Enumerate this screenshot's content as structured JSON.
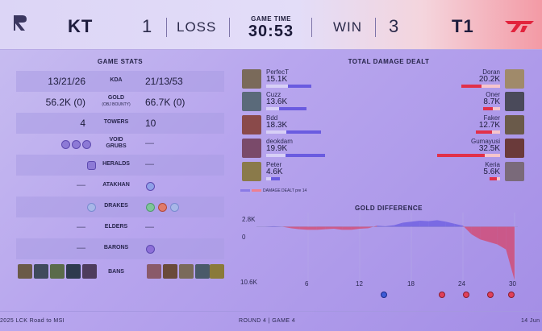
{
  "header": {
    "team_left": "KT",
    "team_right": "T1",
    "score_left": "1",
    "score_right": "3",
    "result_left": "LOSS",
    "result_right": "WIN",
    "game_time_label": "GAME TIME",
    "game_time": "30:53"
  },
  "game_stats": {
    "title": "GAME STATS",
    "rows": [
      {
        "label": "KDA",
        "left": "13/21/26",
        "right": "21/13/53"
      },
      {
        "label": "GOLD",
        "sublabel": "(OBJ BOUNTY)",
        "left": "56.2K (0)",
        "right": "66.7K (0)"
      },
      {
        "label": "TOWERS",
        "left": "4",
        "right": "10"
      },
      {
        "label": "VOID",
        "label2": "GRUBS",
        "left": "",
        "right": "—"
      },
      {
        "label": "HERALDS",
        "left": "",
        "right": "—"
      },
      {
        "label": "ATAKHAN",
        "left": "—",
        "right": ""
      },
      {
        "label": "DRAKES",
        "left": "",
        "right": ""
      },
      {
        "label": "ELDERS",
        "left": "—",
        "right": "—"
      },
      {
        "label": "BARONS",
        "left": "—",
        "right": ""
      },
      {
        "label": "BANS",
        "left": "",
        "right": ""
      }
    ]
  },
  "damage": {
    "title": "TOTAL DAMAGE DEALT",
    "legend": "DAMAGE DEALT pre 14",
    "max": 32.5,
    "kt": [
      {
        "name": "PerfecT",
        "value": "15.1K",
        "num": 15.1,
        "pre14": 7.2
      },
      {
        "name": "Cuzz",
        "value": "13.6K",
        "num": 13.6,
        "pre14": 4.3
      },
      {
        "name": "Bdd",
        "value": "18.3K",
        "num": 18.3,
        "pre14": 6.9
      },
      {
        "name": "deokdam",
        "value": "19.9K",
        "num": 19.9,
        "pre14": 6.5
      },
      {
        "name": "Peter",
        "value": "4.6K",
        "num": 4.6,
        "pre14": 1.6
      }
    ],
    "t1": [
      {
        "name": "Doran",
        "value": "20.2K",
        "num": 20.2,
        "pre14": 9.5
      },
      {
        "name": "Oner",
        "value": "8.7K",
        "num": 8.7,
        "pre14": 3.9
      },
      {
        "name": "Faker",
        "value": "12.7K",
        "num": 12.7,
        "pre14": 4.2
      },
      {
        "name": "Gumayusi",
        "value": "32.5K",
        "num": 32.5,
        "pre14": 8.0
      },
      {
        "name": "Keria",
        "value": "5.6K",
        "num": 5.6,
        "pre14": 1.5
      }
    ]
  },
  "gold_diff": {
    "title": "GOLD DIFFERENCE",
    "y_top": "2.8K",
    "y_zero": "0",
    "y_bottom": "10.6K",
    "x_ticks": [
      "6",
      "12",
      "18",
      "24",
      "30"
    ]
  },
  "chart_data": {
    "type": "area",
    "title": "GOLD DIFFERENCE",
    "x": [
      0,
      1,
      2,
      3,
      4,
      5,
      6,
      7,
      8,
      9,
      10,
      11,
      12,
      13,
      14,
      15,
      16,
      17,
      18,
      19,
      20,
      21,
      22,
      23,
      24,
      25,
      26,
      27,
      28,
      29,
      30
    ],
    "values": [
      0,
      0,
      0.1,
      0,
      -0.3,
      -0.5,
      -0.6,
      -0.6,
      -0.5,
      -0.4,
      -0.6,
      -0.6,
      -0.4,
      -0.3,
      0.2,
      0.1,
      0.3,
      0.8,
      1.0,
      1.2,
      1.1,
      1.3,
      1.0,
      0.6,
      0.2,
      -1.5,
      -2.5,
      -3.0,
      -3.5,
      -4.5,
      -10.6
    ],
    "ylim": [
      -10.6,
      2.8
    ],
    "colors": {
      "positive": "#6a5be0",
      "negative": "#e1304a"
    }
  },
  "footer": {
    "left": "2025 LCK Road to MSI",
    "center": "ROUND 4  |  GAME 4",
    "right": "14 Jun"
  },
  "colors": {
    "kt_bar": "#6a5be0",
    "t1_bar": "#e1304a"
  }
}
